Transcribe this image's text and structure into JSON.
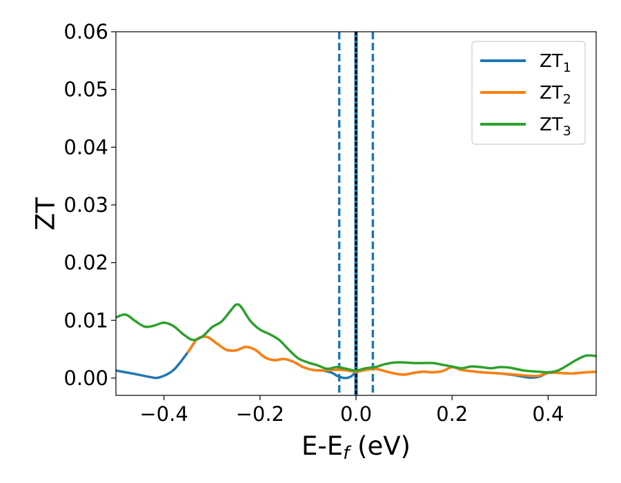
{
  "chart_data": {
    "type": "line",
    "xlabel": "E-E",
    "xlabel_sub": "f",
    "xlabel_unit": " (eV)",
    "ylabel": "ZT",
    "xlim": [
      -0.5,
      0.5
    ],
    "ylim": [
      -0.003,
      0.06
    ],
    "x_ticks": [
      -0.4,
      -0.2,
      0.0,
      0.2,
      0.4
    ],
    "x_tick_labels": [
      "−0.4",
      "−0.2",
      "0.0",
      "0.2",
      "0.4"
    ],
    "y_ticks": [
      0.0,
      0.01,
      0.02,
      0.03,
      0.04,
      0.05,
      0.06
    ],
    "y_tick_labels": [
      "0.00",
      "0.01",
      "0.02",
      "0.03",
      "0.04",
      "0.05",
      "0.06"
    ],
    "grid": false,
    "legend_position": "top-right",
    "colors": {
      "ZT1": "#1f77b4",
      "ZT2": "#ff7f0e",
      "ZT3": "#2ca02c",
      "fermi": "#000000"
    },
    "vertical_lines": [
      {
        "x": -0.035,
        "style": "dashed",
        "color": "#1f77b4"
      },
      {
        "x": 0.035,
        "style": "dashed",
        "color": "#1f77b4"
      },
      {
        "x": 0.0,
        "style": "solid",
        "color": "#1f77b4"
      },
      {
        "x": 0.0,
        "style": "dotted",
        "color": "#000000"
      }
    ],
    "series": [
      {
        "name": "ZT",
        "name_sub": "1",
        "x": [
          -0.5,
          -0.46,
          -0.43,
          -0.41,
          -0.38,
          -0.35,
          -0.33,
          -0.31,
          -0.29,
          -0.27,
          -0.25,
          -0.23,
          -0.21,
          -0.19,
          -0.17,
          -0.15,
          -0.13,
          -0.11,
          -0.09,
          -0.07,
          -0.05,
          -0.04,
          -0.03,
          -0.02,
          -0.01,
          0.0,
          0.02,
          0.04,
          0.06,
          0.08,
          0.1,
          0.12,
          0.14,
          0.16,
          0.18,
          0.2,
          0.22,
          0.25,
          0.28,
          0.3,
          0.33,
          0.36,
          0.38,
          0.4,
          0.42,
          0.45,
          0.48,
          0.5
        ],
        "y": [
          0.0013,
          0.0007,
          0.0002,
          0.0001,
          0.0014,
          0.0045,
          0.0068,
          0.0071,
          0.006,
          0.0049,
          0.0048,
          0.0054,
          0.0049,
          0.0036,
          0.0031,
          0.0033,
          0.0028,
          0.0019,
          0.0014,
          0.0013,
          0.0009,
          0.0004,
          0.0001,
          0.0,
          0.0003,
          0.001,
          0.0014,
          0.0016,
          0.0012,
          0.0008,
          0.0006,
          0.0009,
          0.0011,
          0.001,
          0.0012,
          0.0019,
          0.0014,
          0.0011,
          0.0009,
          0.0008,
          0.0005,
          0.0001,
          0.0002,
          0.0009,
          0.0009,
          0.0008,
          0.001,
          0.0011
        ]
      },
      {
        "name": "ZT",
        "name_sub": "2",
        "x": [
          -0.35,
          -0.33,
          -0.31,
          -0.29,
          -0.27,
          -0.25,
          -0.23,
          -0.21,
          -0.19,
          -0.17,
          -0.15,
          -0.13,
          -0.11,
          -0.09,
          -0.07,
          -0.05,
          -0.03,
          -0.01,
          0.0,
          0.02,
          0.04,
          0.06,
          0.08,
          0.1,
          0.12,
          0.14,
          0.16,
          0.18,
          0.2,
          0.22,
          0.25,
          0.28,
          0.3,
          0.33,
          0.36,
          0.38,
          0.4,
          0.42,
          0.45,
          0.48,
          0.5
        ],
        "y": [
          0.0045,
          0.0068,
          0.0071,
          0.006,
          0.0049,
          0.0048,
          0.0054,
          0.0049,
          0.0036,
          0.0031,
          0.0033,
          0.0028,
          0.0019,
          0.0014,
          0.0013,
          0.0014,
          0.0014,
          0.0012,
          0.0011,
          0.0014,
          0.0016,
          0.0012,
          0.0008,
          0.0006,
          0.0009,
          0.0011,
          0.001,
          0.0012,
          0.0019,
          0.0014,
          0.0011,
          0.0009,
          0.0008,
          0.0006,
          0.0004,
          0.0004,
          0.0009,
          0.0009,
          0.0008,
          0.001,
          0.0011
        ]
      },
      {
        "name": "ZT",
        "name_sub": "3",
        "x": [
          -0.5,
          -0.48,
          -0.46,
          -0.44,
          -0.42,
          -0.4,
          -0.38,
          -0.36,
          -0.34,
          -0.32,
          -0.3,
          -0.28,
          -0.26,
          -0.25,
          -0.24,
          -0.22,
          -0.2,
          -0.18,
          -0.16,
          -0.14,
          -0.12,
          -0.1,
          -0.08,
          -0.06,
          -0.04,
          -0.02,
          0.0,
          0.02,
          0.04,
          0.06,
          0.08,
          0.1,
          0.12,
          0.14,
          0.16,
          0.18,
          0.2,
          0.22,
          0.24,
          0.26,
          0.28,
          0.3,
          0.32,
          0.35,
          0.38,
          0.4,
          0.42,
          0.44,
          0.46,
          0.48,
          0.5
        ],
        "y": [
          0.0105,
          0.011,
          0.0099,
          0.0089,
          0.0091,
          0.0096,
          0.009,
          0.0076,
          0.0066,
          0.0072,
          0.0088,
          0.0098,
          0.0118,
          0.0127,
          0.0124,
          0.0099,
          0.0084,
          0.0076,
          0.0066,
          0.0049,
          0.0034,
          0.0027,
          0.0022,
          0.0016,
          0.0019,
          0.0016,
          0.0013,
          0.0017,
          0.0019,
          0.0024,
          0.0027,
          0.0027,
          0.0026,
          0.0026,
          0.0026,
          0.0023,
          0.002,
          0.0017,
          0.002,
          0.0019,
          0.0017,
          0.0019,
          0.0018,
          0.0013,
          0.0011,
          0.001,
          0.0013,
          0.0022,
          0.0032,
          0.0039,
          0.0038
        ]
      }
    ]
  }
}
